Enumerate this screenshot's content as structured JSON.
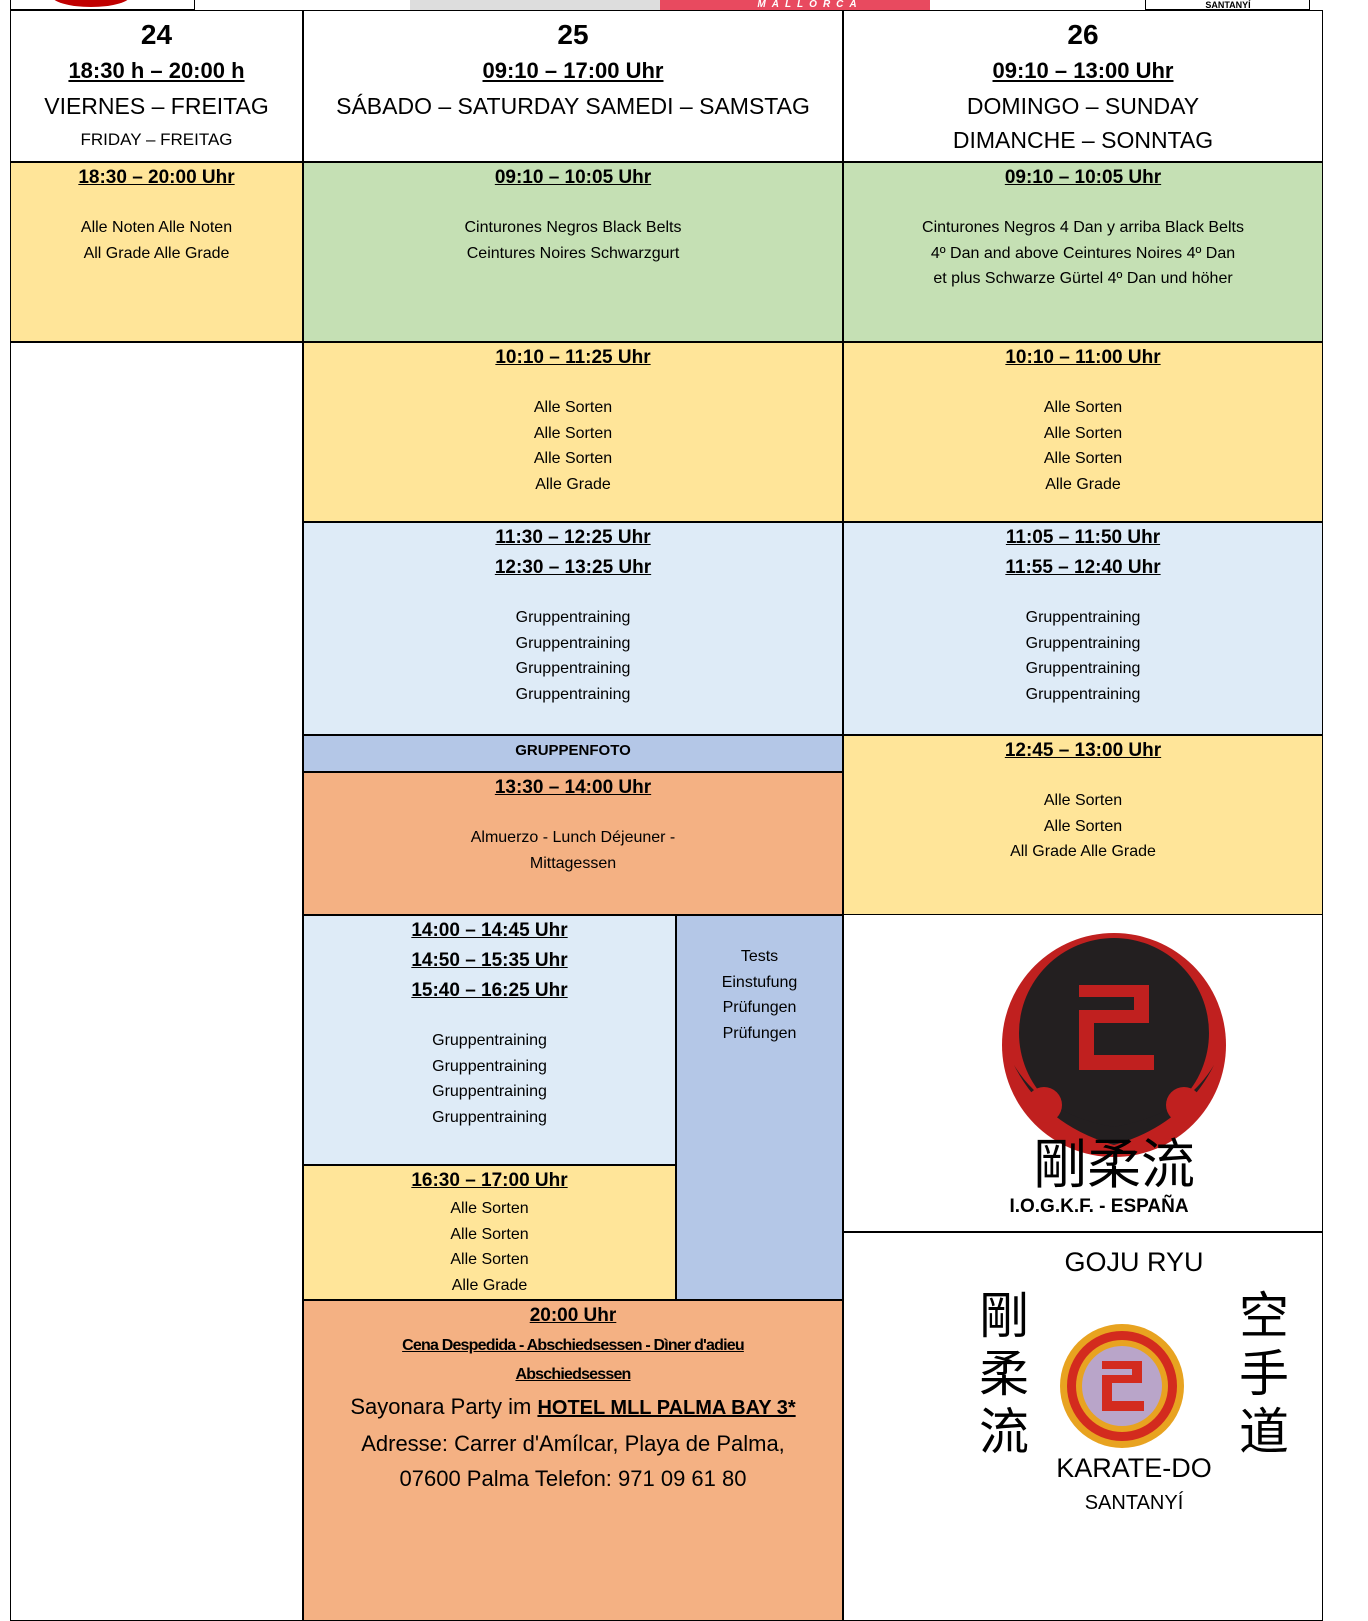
{
  "top_strip": {
    "banner": "MALLORCA",
    "right_logo": "SANTANYÍ"
  },
  "header": [
    {
      "day": "24",
      "time": "18:30 h – 20:00 h",
      "lines": [
        "VIERNES – FREITAG",
        "FRIDAY – FREITAG"
      ]
    },
    {
      "day": "25",
      "time": "09:10 – 17:00 Uhr",
      "lines": [
        "SÁBADO – SATURDAY SAMEDI – SAMSTAG"
      ]
    },
    {
      "day": "26",
      "time": "09:10 – 13:00 Uhr",
      "lines": [
        "DOMINGO – SUNDAY",
        "DIMANCHE – SONNTAG"
      ]
    }
  ],
  "friday": [
    {
      "times": [
        "18:30 – 20:00 Uhr"
      ],
      "lines": [
        "Alle Noten Alle Noten",
        "All Grade Alle Grade"
      ]
    }
  ],
  "saturday": [
    {
      "times": [
        "09:10 – 10:05 Uhr"
      ],
      "lines": [
        "Cinturones Negros Black Belts",
        "Ceintures Noires Schwarzgurt"
      ]
    },
    {
      "times": [
        "10:10 – 11:25 Uhr"
      ],
      "lines": [
        "Alle Sorten",
        "Alle Sorten",
        "Alle Sorten",
        "Alle Grade"
      ]
    },
    {
      "times": [
        "11:30 – 12:25 Uhr",
        "12:30 – 13:25 Uhr"
      ],
      "lines": [
        "Gruppentraining",
        "Gruppentraining",
        "Gruppentraining",
        "Gruppentraining"
      ]
    },
    {
      "times": [
        "13:30 – 14:00 Uhr"
      ],
      "lines": [
        "Almuerzo - Lunch Déjeuner -",
        "Mittagessen"
      ]
    },
    {
      "times": [
        "14:00 – 14:45 Uhr",
        "14:50 – 15:35 Uhr",
        "15:40 – 16:25 Uhr"
      ],
      "lines": [
        "Gruppentraining",
        "Gruppentraining",
        "Gruppentraining",
        "Gruppentraining"
      ]
    },
    {
      "times": [
        "16:30 – 17:00 Uhr"
      ],
      "lines": [
        "Alle Sorten",
        "Alle Sorten",
        "Alle Sorten",
        "Alle Grade"
      ]
    }
  ],
  "saturday_photo": "GRUPPENFOTO",
  "saturday_tests": {
    "lines": [
      "Tests",
      "Einstufung",
      "Prüfungen",
      "Prüfungen"
    ]
  },
  "farewell": {
    "time": "20:00 Uhr",
    "subtitle": [
      "Cena Despedida - Abschiedsessen - Dìner d'adieu",
      "Abschiedsessen"
    ],
    "party": "Sayonara Party im",
    "hotel": "HOTEL MLL PALMA BAY 3*",
    "address": [
      "Adresse: Carrer d'Amílcar, Playa de Palma,",
      "07600 Palma Telefon: 971 09 61 80"
    ]
  },
  "sunday": [
    {
      "times": [
        "09:10 – 10:05 Uhr"
      ],
      "lines": [
        "Cinturones Negros 4 Dan y arriba Black Belts",
        "4º Dan and above Ceintures Noires 4º Dan",
        "et plus Schwarze Gürtel 4º Dan und höher"
      ]
    },
    {
      "times": [
        "10:10 – 11:00 Uhr"
      ],
      "lines": [
        "Alle Sorten",
        "Alle Sorten",
        "Alle Sorten",
        "Alle Grade"
      ]
    },
    {
      "times": [
        "11:05 – 11:50 Uhr",
        "11:55 – 12:40 Uhr"
      ],
      "lines": [
        "Gruppentraining",
        "Gruppentraining",
        "Gruppentraining",
        "Gruppentraining"
      ]
    },
    {
      "times": [
        "12:45 – 13:00 Uhr"
      ],
      "lines": [
        "Alle Sorten",
        "Alle Sorten",
        "All Grade Alle Grade"
      ]
    }
  ],
  "logos": {
    "iogkf_kanji": "剛柔流",
    "iogkf_text": "I.O.G.K.F. - ESPAÑA",
    "goju_top": "GOJU RYU",
    "left_kanji": [
      "剛",
      "柔",
      "流"
    ],
    "right_kanji": [
      "空",
      "手",
      "道"
    ],
    "goju_bottom": [
      "KARATE-DO",
      "SANTANYÍ"
    ]
  }
}
